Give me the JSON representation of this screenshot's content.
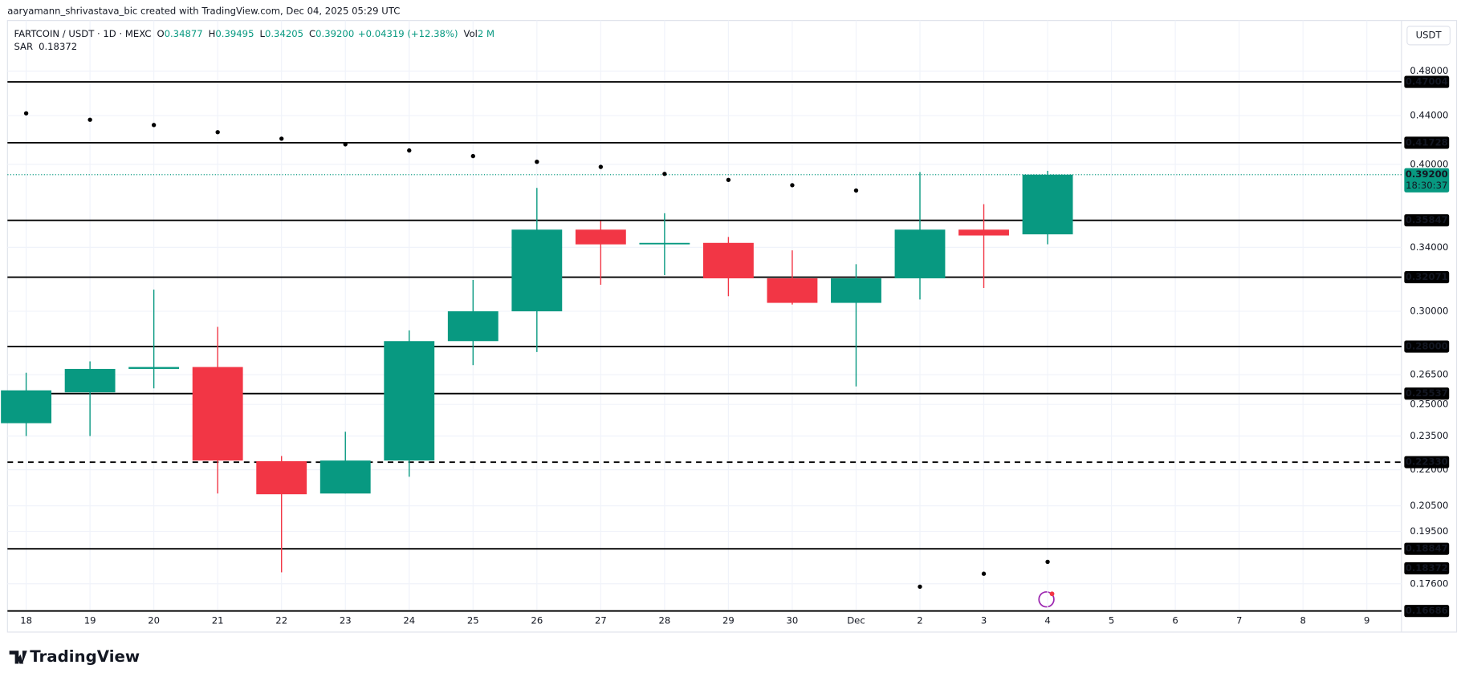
{
  "chart_data": {
    "type": "candlestick",
    "watermark": "aaryamann_shrivastava_bic created with TradingView.com, Dec 04, 2025 05:29 UTC",
    "header": {
      "symbol": "FARTCOIN / USDT · 1D · MEXC",
      "fields": [
        {
          "key": "O",
          "value": 0.34877
        },
        {
          "key": "H",
          "value": 0.39495
        },
        {
          "key": "L",
          "value": 0.34205
        },
        {
          "key": "C",
          "value": {
            "value": 0.392,
            "label": "0.39200"
          }
        },
        {
          "key": "",
          "value": {
            "value": 0.04319,
            "label": "+0.04319 (+12.38%)"
          }
        },
        {
          "key": "Vol",
          "value": {
            "value": 2000000,
            "label": "2 M"
          }
        }
      ]
    },
    "currency": "USDT",
    "logo": "TradingView",
    "categories": [
      "18",
      "19",
      "20",
      "21",
      "22",
      "23",
      "24",
      "25",
      "26",
      "27",
      "28",
      "29",
      "30",
      "Dec",
      "2",
      "3",
      "4",
      "5",
      "6",
      "7",
      "8",
      "9"
    ],
    "series": [
      {
        "name": "FARTCOIN / USDT",
        "up_color": "#089981",
        "down_color": "#f23645",
        "open": [
          0.241,
          0.256,
          0.268,
          0.269,
          0.2237,
          0.21,
          0.224,
          0.283,
          0.3,
          0.352,
          0.342,
          0.343,
          0.32,
          0.305,
          0.32,
          0.352,
          0.34877,
          null,
          null,
          null,
          null,
          null
        ],
        "high": [
          0.266,
          0.272,
          0.313,
          0.291,
          0.226,
          0.237,
          0.289,
          0.319,
          0.382,
          0.358,
          0.3635,
          0.347,
          0.338,
          0.329,
          0.394,
          0.37,
          0.39495,
          null,
          null,
          null,
          null,
          null
        ],
        "low": [
          0.235,
          0.235,
          0.258,
          0.21,
          0.18,
          0.21,
          0.217,
          0.27,
          0.277,
          0.316,
          0.322,
          0.309,
          0.304,
          0.259,
          0.307,
          0.314,
          0.34205,
          null,
          null,
          null,
          null,
          null
        ],
        "close": [
          0.257,
          0.268,
          0.269,
          0.224,
          0.2097,
          0.224,
          0.283,
          0.3,
          0.352,
          0.342,
          0.343,
          0.32,
          0.305,
          0.32,
          0.352,
          0.348,
          0.392,
          null,
          null,
          null,
          null,
          null
        ]
      }
    ],
    "sar": {
      "name": "SAR",
      "color": "#000000",
      "values": [
        0.442,
        0.4365,
        0.432,
        0.426,
        0.4206,
        0.416,
        0.411,
        0.4065,
        0.402,
        0.398,
        0.3926,
        0.388,
        0.384,
        0.38,
        0.175,
        0.1795,
        0.18372,
        null,
        null,
        null,
        null,
        null
      ]
    },
    "levels": [
      {
        "value": 0.47004,
        "label": "0.47004",
        "dashed": false
      },
      {
        "value": 0.41728,
        "label": "0.41728",
        "dashed": false
      },
      {
        "value": 0.35847,
        "label": "0.35847",
        "dashed": false
      },
      {
        "value": 0.32071,
        "label": "0.32071",
        "dashed": false
      },
      {
        "value": 0.28,
        "label": "0.28000",
        "dashed": false
      },
      {
        "value": 0.25537,
        "label": "0.25537",
        "dashed": false
      },
      {
        "value": 0.2233,
        "label": "0.22330",
        "dashed": true
      },
      {
        "value": 0.18847,
        "label": "0.18847",
        "dashed": false
      },
      {
        "value": 0.16686,
        "label": "0.16686",
        "dashed": false
      }
    ],
    "last_price": {
      "value": 0.392,
      "label": "0.39200",
      "countdown": "18:30:37",
      "color": "#089981"
    },
    "log_scale": true,
    "ylim": [
      0.1673,
      0.53
    ],
    "yticks": [
      {
        "value": 0.48,
        "label": "0.48000"
      },
      {
        "value": 0.44,
        "label": "0.44000"
      },
      {
        "value": 0.4,
        "label": "0.40000"
      },
      {
        "value": 0.34,
        "label": "0.34000"
      },
      {
        "value": 0.3,
        "label": "0.30000"
      },
      {
        "value": 0.265,
        "label": "0.26500"
      },
      {
        "value": 0.25,
        "label": "0.25000"
      },
      {
        "value": 0.235,
        "label": "0.23500"
      },
      {
        "value": 0.22,
        "label": "0.22000"
      },
      {
        "value": 0.205,
        "label": "0.20500"
      },
      {
        "value": 0.195,
        "label": "0.19500"
      },
      {
        "value": 0.176,
        "label": "0.17600"
      }
    ],
    "grid": true
  }
}
